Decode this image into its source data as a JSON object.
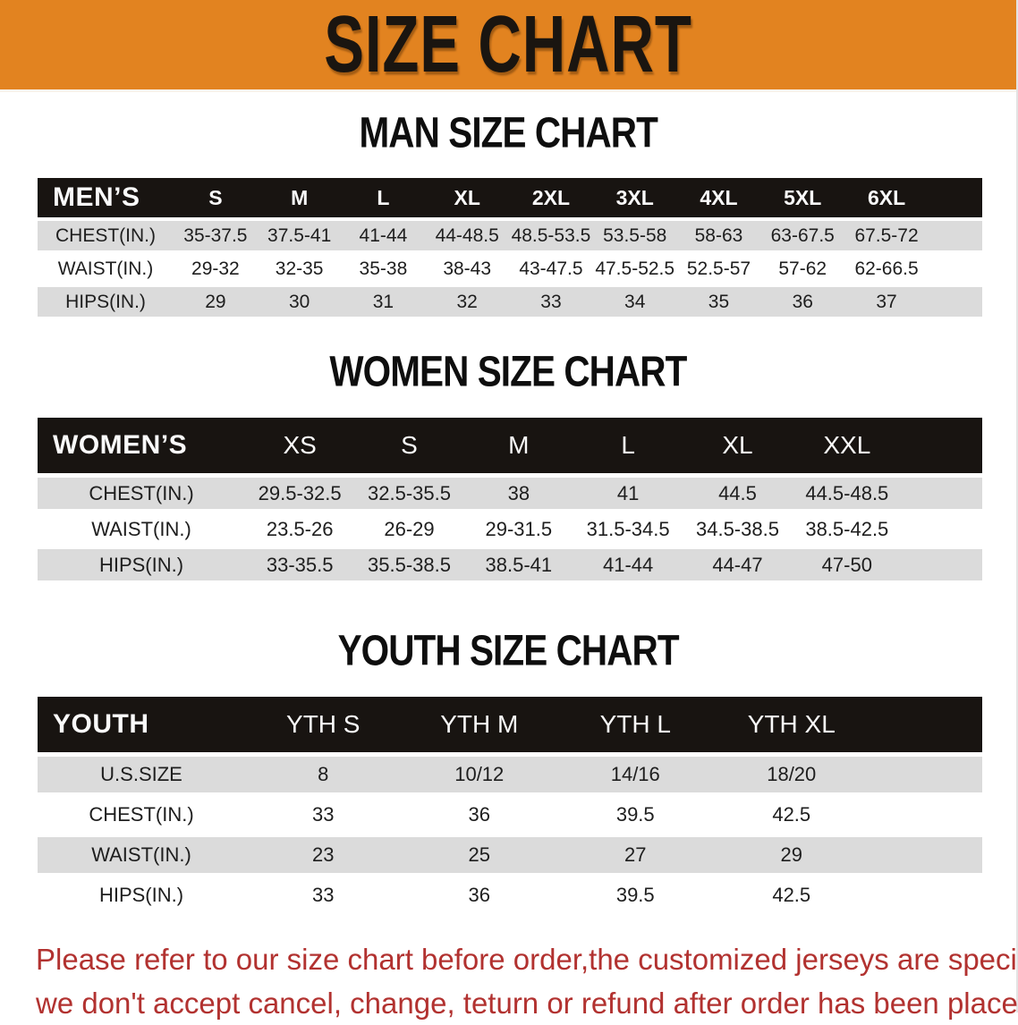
{
  "banner": {
    "title": "SIZE CHART",
    "bg_color": "#E28320"
  },
  "sections": {
    "men": {
      "heading": "MAN SIZE CHART",
      "table": {
        "header_label": "MEN’S",
        "columns": [
          "S",
          "M",
          "L",
          "XL",
          "2XL",
          "3XL",
          "4XL",
          "5XL",
          "6XL"
        ],
        "rows": [
          {
            "label": "CHEST(IN.)",
            "values": [
              "35-37.5",
              "37.5-41",
              "41-44",
              "44-48.5",
              "48.5-53.5",
              "53.5-58",
              "58-63",
              "63-67.5",
              "67.5-72"
            ]
          },
          {
            "label": "WAIST(IN.)",
            "values": [
              "29-32",
              "32-35",
              "35-38",
              "38-43",
              "43-47.5",
              "47.5-52.5",
              "52.5-57",
              "57-62",
              "62-66.5"
            ]
          },
          {
            "label": "HIPS(IN.)",
            "values": [
              "29",
              "30",
              "31",
              "32",
              "33",
              "34",
              "35",
              "36",
              "37"
            ]
          }
        ]
      }
    },
    "women": {
      "heading": "WOMEN SIZE CHART",
      "table": {
        "header_label": "WOMEN’S",
        "columns": [
          "XS",
          "S",
          "M",
          "L",
          "XL",
          "XXL"
        ],
        "rows": [
          {
            "label": "CHEST(IN.)",
            "values": [
              "29.5-32.5",
              "32.5-35.5",
              "38",
              "41",
              "44.5",
              "44.5-48.5"
            ]
          },
          {
            "label": "WAIST(IN.)",
            "values": [
              "23.5-26",
              "26-29",
              "29-31.5",
              "31.5-34.5",
              "34.5-38.5",
              "38.5-42.5"
            ]
          },
          {
            "label": "HIPS(IN.)",
            "values": [
              "33-35.5",
              "35.5-38.5",
              "38.5-41",
              "41-44",
              "44-47",
              "47-50"
            ]
          }
        ]
      }
    },
    "youth": {
      "heading": "YOUTH SIZE CHART",
      "table": {
        "header_label": "YOUTH",
        "columns": [
          "YTH S",
          "YTH M",
          "YTH L",
          "YTH XL"
        ],
        "rows": [
          {
            "label": "U.S.SIZE",
            "values": [
              "8",
              "10/12",
              "14/16",
              "18/20"
            ]
          },
          {
            "label": "CHEST(IN.)",
            "values": [
              "33",
              "36",
              "39.5",
              "42.5"
            ]
          },
          {
            "label": "WAIST(IN.)",
            "values": [
              "23",
              "25",
              "27",
              "29"
            ]
          },
          {
            "label": "HIPS(IN.)",
            "values": [
              "33",
              "36",
              "39.5",
              "42.5"
            ]
          }
        ]
      }
    }
  },
  "disclaimer": {
    "line1": "Please refer to our size chart before order,the customized jerseys are special products,",
    "line2": "we don't accept cancel, change, teturn or refund after order has been placed!",
    "color": "#B23230"
  },
  "colors": {
    "accent_orange": "#E28320",
    "header_black": "#181411",
    "row_gray": "#DBDBDB"
  }
}
